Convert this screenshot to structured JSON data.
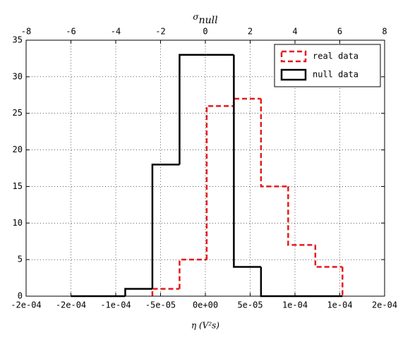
{
  "chart_data": {
    "type": "histogram",
    "xlabel": "η  (V²s)",
    "x2label": {
      "symbol": "σ",
      "subscript": "null"
    },
    "xlim": [
      -0.0002,
      0.0002
    ],
    "xticks": [
      {
        "value": -0.0002,
        "label": "-2e-04"
      },
      {
        "value": -0.00015,
        "label": "-2e-04"
      },
      {
        "value": -0.0001,
        "label": "-1e-04"
      },
      {
        "value": -5e-05,
        "label": "-5e-05"
      },
      {
        "value": 0,
        "label": "0e+00"
      },
      {
        "value": 5e-05,
        "label": "5e-05"
      },
      {
        "value": 0.0001,
        "label": "1e-04"
      },
      {
        "value": 0.00015,
        "label": "1e-04"
      },
      {
        "value": 0.0002,
        "label": "2e-04"
      }
    ],
    "x2lim": [
      -8,
      8
    ],
    "x2ticks": [
      -8,
      -6,
      -4,
      -2,
      0,
      2,
      4,
      6,
      8
    ],
    "ylim": [
      0,
      35
    ],
    "yticks": [
      0,
      5,
      10,
      15,
      20,
      25,
      30,
      35
    ],
    "grid": true,
    "legend": "upper right",
    "series": [
      {
        "name": "real data",
        "color": "#e41a1c",
        "dashed": true,
        "bins": [
          -5.91e-05,
          -2.88e-05,
          1.5e-06,
          3.18e-05,
          6.21e-05,
          9.24e-05,
          0.0001227,
          0.000153
        ],
        "values": [
          1,
          5,
          26,
          27,
          15,
          7,
          4
        ]
      },
      {
        "name": "null data",
        "color": "#000000",
        "dashed": false,
        "bins": [
          -0.00015,
          -0.0001197,
          -8.94e-05,
          -5.91e-05,
          -2.88e-05,
          1.5e-06,
          3.18e-05,
          6.21e-05,
          9.24e-05,
          0.0001227,
          0.000153
        ],
        "values": [
          0,
          0,
          1,
          18,
          33,
          33,
          4,
          0,
          0,
          0
        ]
      }
    ]
  }
}
